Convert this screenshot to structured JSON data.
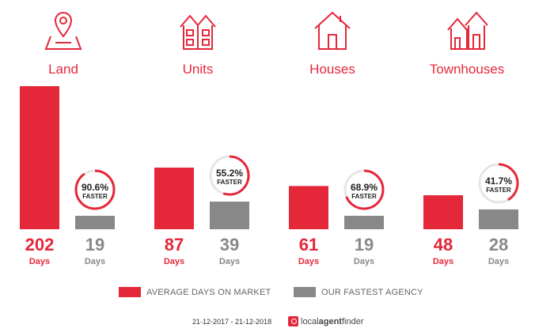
{
  "chart_data": {
    "type": "bar",
    "categories": [
      "Land",
      "Units",
      "Houses",
      "Townhouses"
    ],
    "icons": [
      "map-pin-icon",
      "units-icon",
      "house-icon",
      "townhouses-icon"
    ],
    "series": [
      {
        "name": "AVERAGE DAYS ON MARKET",
        "values": [
          202,
          87,
          61,
          48
        ],
        "color": "#e5273a"
      },
      {
        "name": "OUR FASTEST AGENCY",
        "values": [
          19,
          39,
          19,
          28
        ],
        "color": "#888888"
      }
    ],
    "faster": [
      "90.6%",
      "55.2%",
      "68.9%",
      "41.7%"
    ],
    "faster_label": "FASTER",
    "unit_label": "Days",
    "ylim": [
      0,
      202
    ]
  },
  "colors": {
    "accent": "#e5273a",
    "grey": "#888888",
    "ring_track": "#e6e6e6"
  },
  "footer": {
    "date_range": "21-12-2017 - 21-12-2018",
    "brand_pre": "local",
    "brand_bold": "agent",
    "brand_post": "finder"
  }
}
